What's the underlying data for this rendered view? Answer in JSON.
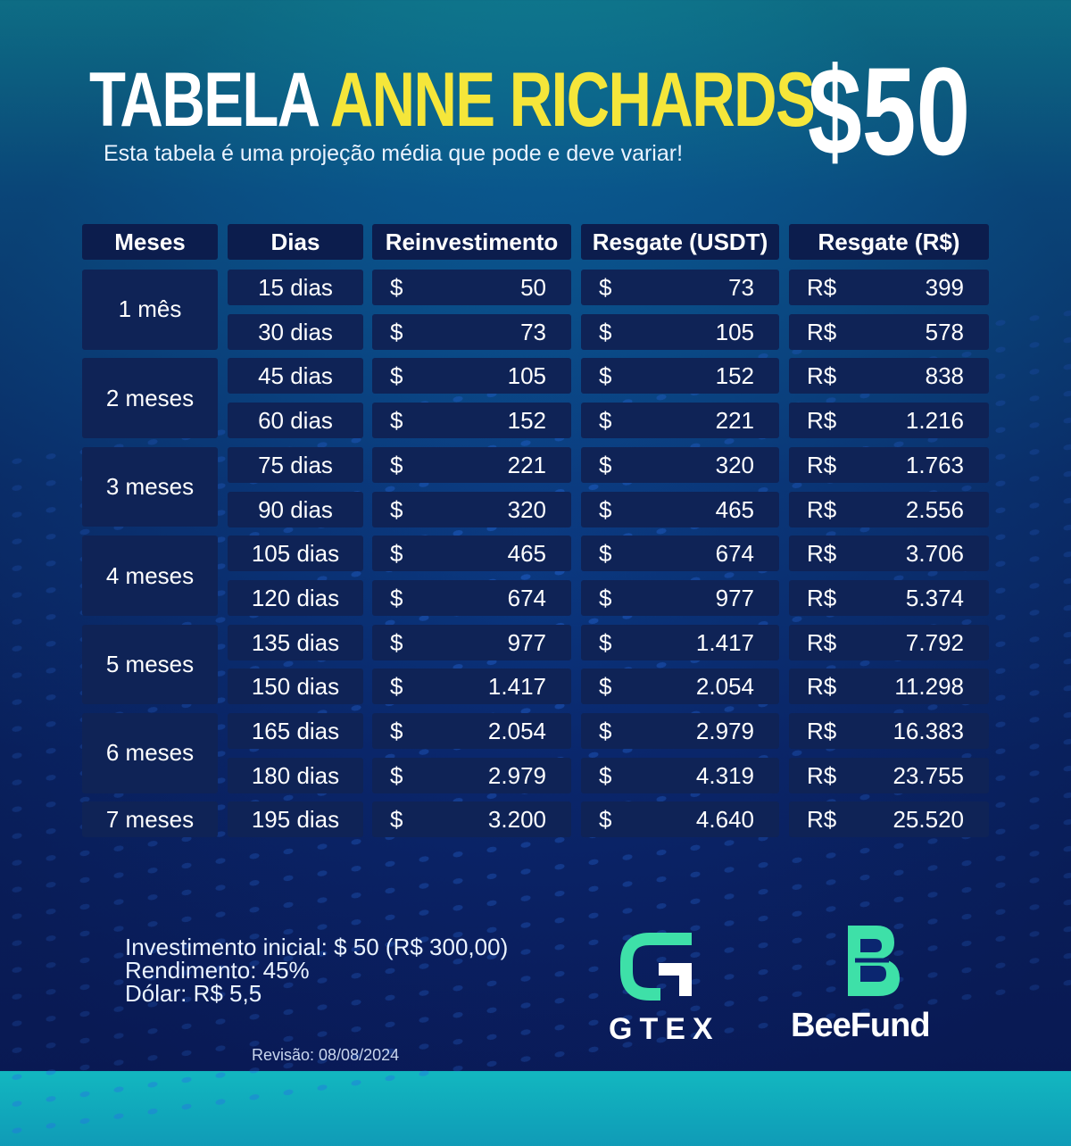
{
  "title": {
    "part1": "TABELA",
    "part2": "ANNE RICHARDS",
    "price": "$50"
  },
  "subtitle": "Esta tabela é uma projeção média que pode e deve variar!",
  "colors": {
    "accent_yellow": "#f5e63a",
    "logo_green": "#3ee0a8",
    "cell_bg": "#0f2356"
  },
  "table": {
    "headers": [
      "Meses",
      "Dias",
      "Reinvestimento",
      "Resgate (USDT)",
      "Resgate (R$)"
    ],
    "usd_symbol": "$",
    "brl_symbol": "R$",
    "months": [
      {
        "label": "1 mês",
        "rows": 2
      },
      {
        "label": "2 meses",
        "rows": 2
      },
      {
        "label": "3 meses",
        "rows": 2
      },
      {
        "label": "4 meses",
        "rows": 2
      },
      {
        "label": "5 meses",
        "rows": 2
      },
      {
        "label": "6 meses",
        "rows": 2
      },
      {
        "label": "7 meses",
        "rows": 1
      }
    ],
    "rows": [
      {
        "dias": "15 dias",
        "reinvest": "50",
        "usdt": "73",
        "brl": "399"
      },
      {
        "dias": "30 dias",
        "reinvest": "73",
        "usdt": "105",
        "brl": "578"
      },
      {
        "dias": "45 dias",
        "reinvest": "105",
        "usdt": "152",
        "brl": "838"
      },
      {
        "dias": "60 dias",
        "reinvest": "152",
        "usdt": "221",
        "brl": "1.216"
      },
      {
        "dias": "75 dias",
        "reinvest": "221",
        "usdt": "320",
        "brl": "1.763"
      },
      {
        "dias": "90 dias",
        "reinvest": "320",
        "usdt": "465",
        "brl": "2.556"
      },
      {
        "dias": "105 dias",
        "reinvest": "465",
        "usdt": "674",
        "brl": "3.706"
      },
      {
        "dias": "120 dias",
        "reinvest": "674",
        "usdt": "977",
        "brl": "5.374"
      },
      {
        "dias": "135 dias",
        "reinvest": "977",
        "usdt": "1.417",
        "brl": "7.792"
      },
      {
        "dias": "150 dias",
        "reinvest": "1.417",
        "usdt": "2.054",
        "brl": "11.298"
      },
      {
        "dias": "165 dias",
        "reinvest": "2.054",
        "usdt": "2.979",
        "brl": "16.383"
      },
      {
        "dias": "180 dias",
        "reinvest": "2.979",
        "usdt": "4.319",
        "brl": "23.755"
      },
      {
        "dias": "195 dias",
        "reinvest": "3.200",
        "usdt": "4.640",
        "brl": "25.520"
      }
    ]
  },
  "footer": {
    "investimento": "Investimento inicial: $ 50  (R$ 300,00)",
    "rendimento": "Rendimento: 45%",
    "dolar": "Dólar: R$ 5,5",
    "revisao": "Revisão: 08/08/2024"
  },
  "logos": {
    "gtex": "GTEX",
    "beefund": "BeeFund",
    "gtex_icon": "gtex-g-icon",
    "beefund_icon": "beefund-b-icon"
  }
}
